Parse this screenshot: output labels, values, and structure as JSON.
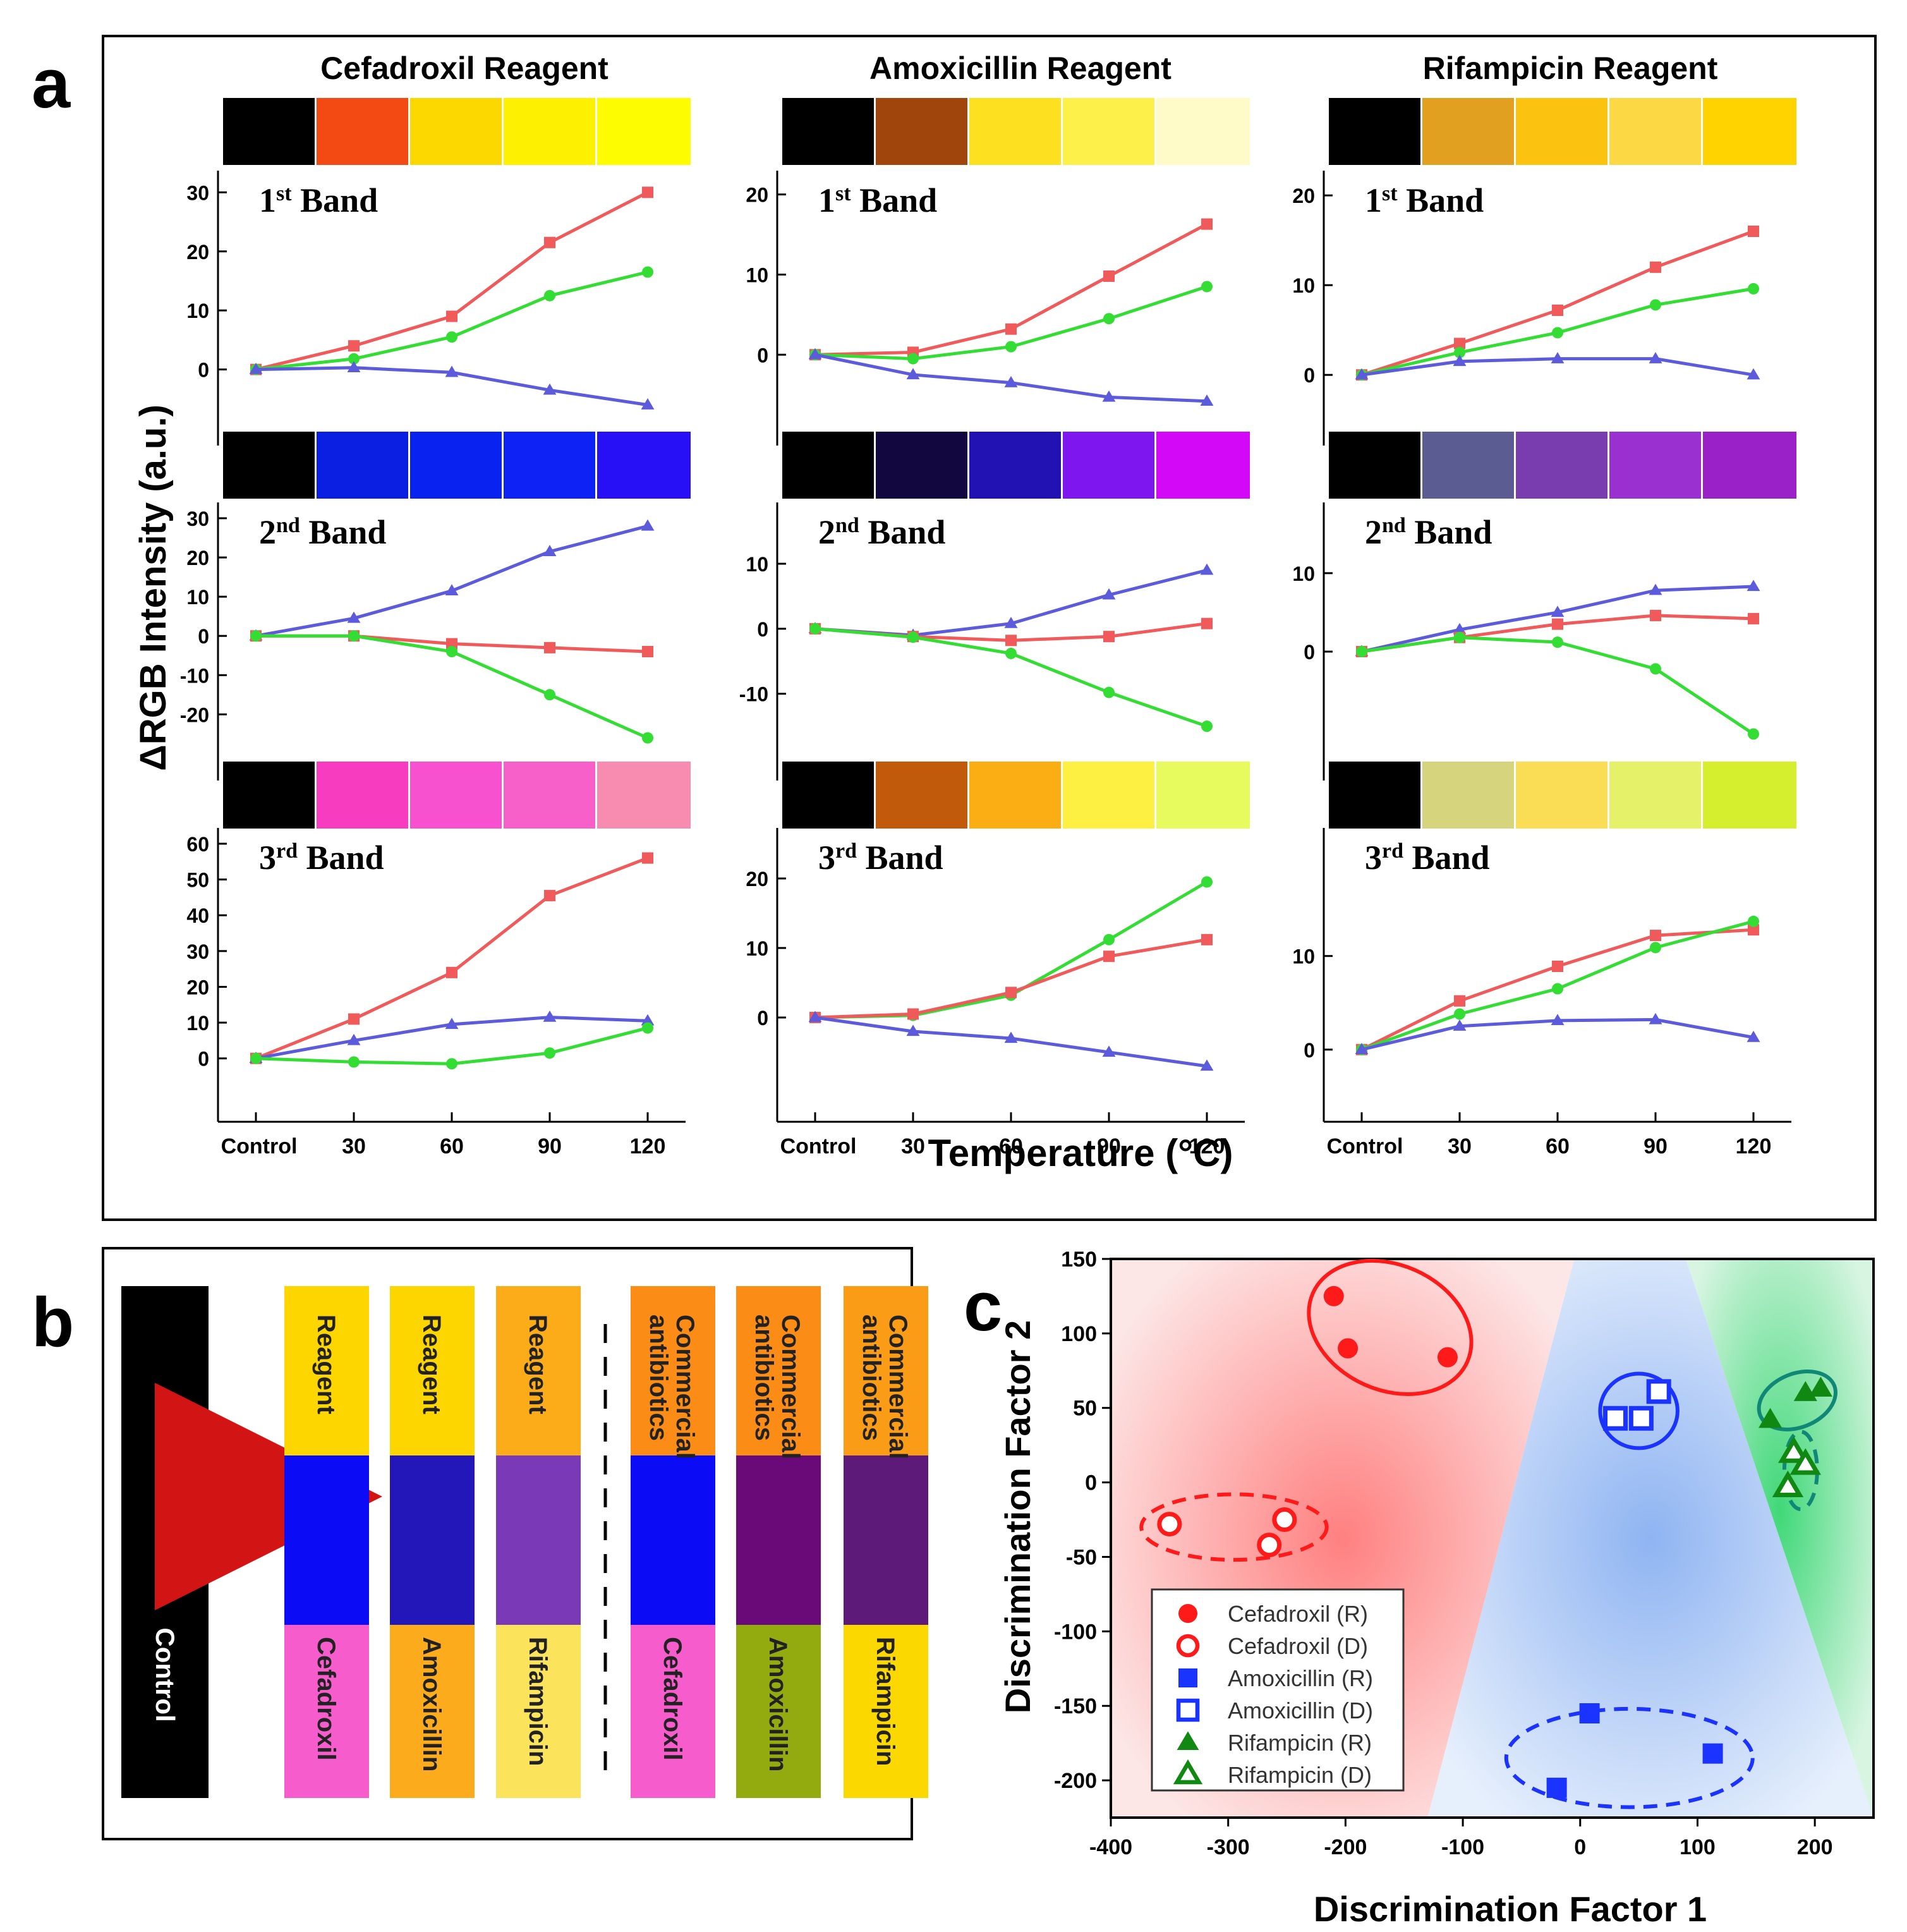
{
  "panel_letters": {
    "a": "a",
    "b": "b",
    "c": "c"
  },
  "colors": {
    "red": "#f05a5a",
    "green": "#33dd33",
    "blue": "#5b5bdc"
  },
  "chart_data": [
    {
      "panel": "a",
      "type": "line",
      "xlabel": "Temperature (°C)",
      "ylabel": "ΔRGB Intensity (a.u.)",
      "categories": [
        "Control",
        "30",
        "60",
        "90",
        "120"
      ],
      "reagents": [
        {
          "title": "Cefadroxil Reagent",
          "bands": [
            {
              "label_main": "1",
              "label_sup": "st",
              "label_tail": " Band",
              "swatches": [
                "#000000",
                "#f24a12",
                "#fcd700",
                "#fdf000",
                "#fefc00"
              ],
              "ylim": [
                -7,
                31
              ],
              "ticks": [
                0,
                10,
                20,
                30
              ],
              "series": [
                {
                  "color": "red",
                  "marker": "square",
                  "values": [
                    0,
                    4,
                    9,
                    21.5,
                    30
                  ]
                },
                {
                  "color": "green",
                  "marker": "circle",
                  "values": [
                    0,
                    1.8,
                    5.5,
                    12.5,
                    16.5
                  ]
                },
                {
                  "color": "blue",
                  "marker": "triangle",
                  "values": [
                    0,
                    0.3,
                    -0.5,
                    -3.5,
                    -6
                  ]
                }
              ]
            },
            {
              "label_main": "2",
              "label_sup": "nd",
              "label_tail": " Band",
              "swatches": [
                "#000000",
                "#0b1fe2",
                "#0a22ef",
                "#0f22f5",
                "#2810f6"
              ],
              "ylim": [
                -28,
                30
              ],
              "ticks": [
                -20,
                -10,
                0,
                10,
                20,
                30
              ],
              "series": [
                {
                  "color": "blue",
                  "marker": "triangle",
                  "values": [
                    0,
                    4.5,
                    11.5,
                    21.5,
                    28
                  ]
                },
                {
                  "color": "red",
                  "marker": "square",
                  "values": [
                    0,
                    0,
                    -2,
                    -3,
                    -4
                  ]
                },
                {
                  "color": "green",
                  "marker": "circle",
                  "values": [
                    0,
                    0,
                    -4,
                    -15,
                    -26
                  ]
                }
              ]
            },
            {
              "label_main": "3",
              "label_sup": "rd",
              "label_tail": " Band",
              "swatches": [
                "#000000",
                "#f73cbf",
                "#f851cf",
                "#f760c9",
                "#f78cb0"
              ],
              "ylim": [
                -8,
                60
              ],
              "ticks": [
                0,
                10,
                20,
                30,
                40,
                50,
                60
              ],
              "series": [
                {
                  "color": "red",
                  "marker": "square",
                  "values": [
                    0,
                    11,
                    24,
                    45.5,
                    56
                  ]
                },
                {
                  "color": "blue",
                  "marker": "triangle",
                  "values": [
                    0,
                    5,
                    9.5,
                    11.5,
                    10.5
                  ]
                },
                {
                  "color": "green",
                  "marker": "circle",
                  "values": [
                    0,
                    -1,
                    -1.5,
                    1.5,
                    8.5
                  ]
                }
              ]
            }
          ]
        },
        {
          "title": "Amoxicillin Reagent",
          "bands": [
            {
              "label_main": "1",
              "label_sup": "st",
              "label_tail": " Band",
              "swatches": [
                "#000000",
                "#a0450c",
                "#fde020",
                "#fef04a",
                "#fefbc8"
              ],
              "ylim": [
                -7,
                21
              ],
              "ticks": [
                0,
                10,
                20
              ],
              "series": [
                {
                  "color": "red",
                  "marker": "square",
                  "values": [
                    0,
                    0.3,
                    3.2,
                    9.8,
                    16.3
                  ]
                },
                {
                  "color": "green",
                  "marker": "circle",
                  "values": [
                    0,
                    -0.5,
                    1,
                    4.5,
                    8.5
                  ]
                },
                {
                  "color": "blue",
                  "marker": "triangle",
                  "values": [
                    0,
                    -2.5,
                    -3.5,
                    -5.3,
                    -5.8
                  ]
                }
              ]
            },
            {
              "label_main": "2",
              "label_sup": "nd",
              "label_tail": " Band",
              "swatches": [
                "#000000",
                "#12073e",
                "#2212b3",
                "#7d16ef",
                "#d308f6"
              ],
              "ylim": [
                -18,
                17
              ],
              "ticks": [
                -10,
                0,
                10
              ],
              "series": [
                {
                  "color": "blue",
                  "marker": "triangle",
                  "values": [
                    0,
                    -1,
                    0.8,
                    5.2,
                    9
                  ]
                },
                {
                  "color": "red",
                  "marker": "square",
                  "values": [
                    0,
                    -1.2,
                    -1.8,
                    -1.2,
                    0.8
                  ]
                },
                {
                  "color": "green",
                  "marker": "circle",
                  "values": [
                    0,
                    -1.3,
                    -3.8,
                    -9.8,
                    -15
                  ]
                }
              ]
            },
            {
              "label_main": "3",
              "label_sup": "rd",
              "label_tail": " Band",
              "swatches": [
                "#000000",
                "#c15a0b",
                "#fbae13",
                "#fef043",
                "#e7fb5e"
              ],
              "ylim": [
                -10,
                25
              ],
              "ticks": [
                0,
                10,
                20
              ],
              "series": [
                {
                  "color": "green",
                  "marker": "circle",
                  "values": [
                    0,
                    0.3,
                    3.2,
                    11.2,
                    19.5
                  ]
                },
                {
                  "color": "red",
                  "marker": "square",
                  "values": [
                    0,
                    0.5,
                    3.6,
                    8.8,
                    11.2
                  ]
                },
                {
                  "color": "blue",
                  "marker": "triangle",
                  "values": [
                    0,
                    -2,
                    -3,
                    -5,
                    -7
                  ]
                }
              ]
            }
          ]
        },
        {
          "title": "Rifampicin Reagent",
          "bands": [
            {
              "label_main": "1",
              "label_sup": "st",
              "label_tail": " Band",
              "swatches": [
                "#000000",
                "#e2a020",
                "#fbc310",
                "#fdd845",
                "#fed300"
              ],
              "ylim": [
                -4,
                21
              ],
              "ticks": [
                0,
                10,
                20
              ],
              "series": [
                {
                  "color": "red",
                  "marker": "square",
                  "values": [
                    0,
                    3.5,
                    7.2,
                    12,
                    16
                  ]
                },
                {
                  "color": "green",
                  "marker": "circle",
                  "values": [
                    0,
                    2.5,
                    4.7,
                    7.8,
                    9.6
                  ]
                },
                {
                  "color": "blue",
                  "marker": "triangle",
                  "values": [
                    0,
                    1.5,
                    1.8,
                    1.8,
                    0
                  ]
                }
              ]
            },
            {
              "label_main": "2",
              "label_sup": "nd",
              "label_tail": " Band",
              "swatches": [
                "#000000",
                "#5a5c92",
                "#7a3db0",
                "#9a30d0",
                "#9a20c8"
              ],
              "ylim": [
                -12,
                17
              ],
              "ticks": [
                0,
                10
              ],
              "series": [
                {
                  "color": "blue",
                  "marker": "triangle",
                  "values": [
                    0,
                    2.8,
                    5,
                    7.8,
                    8.3
                  ]
                },
                {
                  "color": "red",
                  "marker": "square",
                  "values": [
                    0,
                    1.8,
                    3.5,
                    4.6,
                    4.2
                  ]
                },
                {
                  "color": "green",
                  "marker": "circle",
                  "values": [
                    0,
                    1.8,
                    1.2,
                    -2.2,
                    -10.5
                  ]
                }
              ]
            },
            {
              "label_main": "3",
              "label_sup": "rd",
              "label_tail": " Band",
              "swatches": [
                "#000000",
                "#d6d57e",
                "#fbdc55",
                "#e6f16a",
                "#d5ef2e"
              ],
              "ylim": [
                -4,
                22
              ],
              "ticks": [
                0,
                10
              ],
              "series": [
                {
                  "color": "red",
                  "marker": "square",
                  "values": [
                    0,
                    5.2,
                    8.9,
                    12.2,
                    12.8
                  ]
                },
                {
                  "color": "green",
                  "marker": "circle",
                  "values": [
                    0,
                    3.8,
                    6.5,
                    10.9,
                    13.7
                  ]
                },
                {
                  "color": "blue",
                  "marker": "triangle",
                  "values": [
                    0,
                    2.5,
                    3.1,
                    3.2,
                    1.3
                  ]
                }
              ]
            }
          ]
        }
      ]
    },
    {
      "panel": "c",
      "type": "scatter",
      "xlabel": "Discrimination  Factor 1",
      "ylabel": "Discrimination  Factor 2",
      "xlim": [
        -400,
        250
      ],
      "ylim": [
        -225,
        150
      ],
      "xticks": [
        -400,
        -300,
        -200,
        -100,
        0,
        100,
        200
      ],
      "yticks": [
        -200,
        -150,
        -100,
        -50,
        0,
        50,
        100,
        150
      ],
      "series": [
        {
          "name": "Cefadroxil (R)",
          "color": "#ff1a1a",
          "marker": "circle",
          "filled": true,
          "points": [
            [
              -210,
              125
            ],
            [
              -198,
              90
            ],
            [
              -113,
              84
            ]
          ]
        },
        {
          "name": "Cefadroxil (D)",
          "color": "#ff1a1a",
          "marker": "circle",
          "filled": false,
          "points": [
            [
              -350,
              -28
            ],
            [
              -252,
              -25
            ],
            [
              -265,
              -42
            ]
          ]
        },
        {
          "name": "Amoxicillin (R)",
          "color": "#1a33ff",
          "marker": "square",
          "filled": true,
          "points": [
            [
              -20,
              -205
            ],
            [
              8,
              -155
            ],
            [
              113,
              -182
            ]
          ]
        },
        {
          "name": "Amoxicillin (D)",
          "color": "#1a33ff",
          "marker": "square",
          "filled": false,
          "points": [
            [
              30,
              43
            ],
            [
              52,
              43
            ],
            [
              67,
              61
            ]
          ]
        },
        {
          "name": "Rifampicin (R)",
          "color": "#118811",
          "marker": "triangle",
          "filled": true,
          "points": [
            [
              162,
              42
            ],
            [
              192,
              60
            ],
            [
              205,
              63
            ]
          ]
        },
        {
          "name": "Rifampicin (D)",
          "color": "#118811",
          "marker": "triangle",
          "filled": false,
          "points": [
            [
              182,
              20
            ],
            [
              192,
              12
            ],
            [
              177,
              -3
            ]
          ]
        }
      ]
    }
  ],
  "panel_b": {
    "control_label": "Control",
    "columns": [
      {
        "top_text": "Reagent",
        "top_color": "#fdd600",
        "mid_color": "#0b0bf5",
        "bot_text": "Cefadroxil",
        "bot_color": "#f75ccc"
      },
      {
        "top_text": "Reagent",
        "top_color": "#fdd600",
        "mid_color": "#2417b9",
        "bot_text": "Amoxicillin",
        "bot_color": "#fbab1c"
      },
      {
        "top_text": "Reagent",
        "top_color": "#fbac18",
        "mid_color": "#7a3ab8",
        "bot_text": "Rifampicin",
        "bot_color": "#fbe35c"
      },
      {
        "top_text": "Commercial antibiotics",
        "top_color": "#fb8d16",
        "mid_color": "#0b0bf5",
        "bot_text": "Cefadroxil",
        "bot_color": "#f75ccc"
      },
      {
        "top_text": "Commercial antibiotics",
        "top_color": "#fb8d16",
        "mid_color": "#6a0a78",
        "bot_text": "Amoxicillin",
        "bot_color": "#94ab10"
      },
      {
        "top_text": "Commercial antibiotics",
        "top_color": "#fb9c16",
        "mid_color": "#5e1a78",
        "bot_text": "Rifampicin",
        "bot_color": "#fbd800"
      }
    ]
  }
}
